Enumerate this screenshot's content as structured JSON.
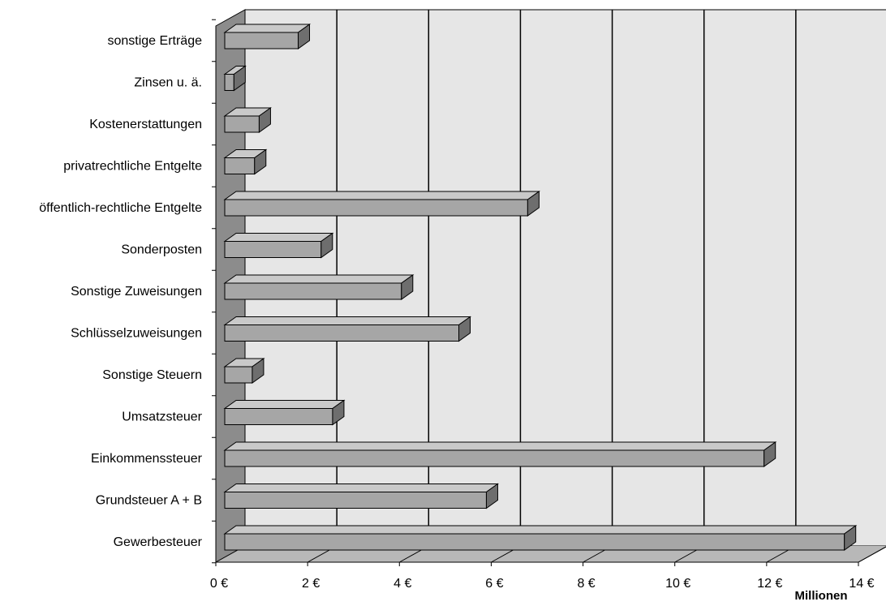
{
  "chart_data": {
    "type": "bar",
    "orientation": "horizontal",
    "style": "3d",
    "categories": [
      "sonstige Erträge",
      "Zinsen u. ä.",
      "Kostenerstattungen",
      "privatrechtliche Entgelte",
      "öffentlich-rechtliche Entgelte",
      "Sonderposten",
      "Sonstige Zuweisungen",
      "Schlüsselzuweisungen",
      "Sonstige Steuern",
      "Umsatzsteuer",
      "Einkommenssteuer",
      "Grundsteuer A + B",
      "Gewerbesteuer"
    ],
    "values": [
      1.6,
      0.2,
      0.75,
      0.65,
      6.6,
      2.1,
      3.85,
      5.1,
      0.6,
      2.35,
      11.75,
      5.7,
      13.5
    ],
    "xlim": [
      0,
      14
    ],
    "xticks": [
      0,
      2,
      4,
      6,
      8,
      10,
      12,
      14
    ],
    "xtick_labels": [
      "0 €",
      "2 €",
      "4 €",
      "6 €",
      "8 €",
      "10 €",
      "12 €",
      "14 €"
    ],
    "x_unit_label": "Millionen",
    "title": "",
    "xlabel": "",
    "ylabel": "",
    "grid": true,
    "colors": {
      "bar_front": "#a6a6a6",
      "bar_top": "#c9c9c9",
      "bar_side": "#6e6e6e",
      "wall": "#e6e6e6",
      "floor": "#b8b8b8",
      "side_wall": "#8c8c8c",
      "gridline": "#000000"
    }
  }
}
